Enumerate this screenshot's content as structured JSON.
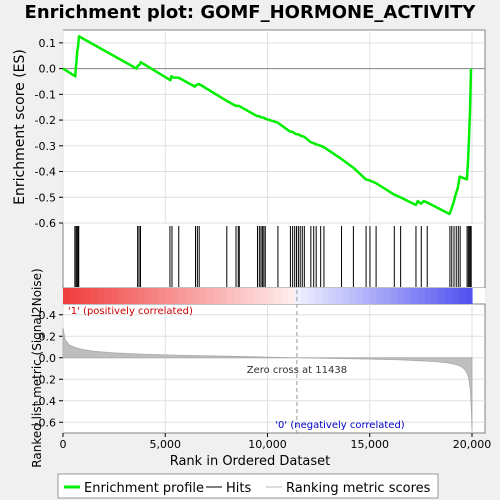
{
  "chart_data": {
    "type": "line",
    "title": "Enrichment plot: GOMF_HORMONE_ACTIVITY",
    "n_genes": 20000,
    "xlabel": "Rank in Ordered Dataset",
    "x_ticks": [
      0,
      5000,
      10000,
      15000,
      20000
    ],
    "x_tick_labels": [
      "0",
      "5,000",
      "10,000",
      "15,000",
      "20,000"
    ],
    "es_panel": {
      "ylabel": "Enrichment score (ES)",
      "ylim": [
        -0.6,
        0.15
      ],
      "y_ticks": [
        0.1,
        0.0,
        -0.1,
        -0.2,
        -0.3,
        -0.4,
        -0.5,
        -0.6
      ],
      "y_tick_labels": [
        "0.1",
        "0.0",
        "-0.1",
        "-0.2",
        "-0.3",
        "-0.4",
        "-0.5",
        "-0.6"
      ],
      "color": "#00ee00",
      "series": {
        "name": "Enrichment profile",
        "x": [
          0,
          600,
          620,
          650,
          700,
          730,
          780,
          3600,
          3650,
          3750,
          3800,
          5250,
          5300,
          5400,
          5650,
          6450,
          6500,
          6650,
          8000,
          8450,
          8600,
          9500,
          9600,
          9700,
          9800,
          9900,
          10500,
          11100,
          11200,
          11300,
          11400,
          11500,
          11600,
          11800,
          12100,
          12250,
          12400,
          12600,
          12750,
          13600,
          14200,
          14800,
          15000,
          15300,
          16200,
          16500,
          17250,
          17350,
          17500,
          17650,
          17800,
          18900,
          19000,
          19100,
          19200,
          19300,
          19400,
          19750,
          19800,
          19850,
          19900,
          19950
        ],
        "y": [
          0.0,
          -0.03,
          0.0,
          0.02,
          0.07,
          0.08,
          0.125,
          0.0,
          0.01,
          0.015,
          0.025,
          -0.045,
          -0.03,
          -0.035,
          -0.035,
          -0.07,
          -0.065,
          -0.06,
          -0.125,
          -0.145,
          -0.145,
          -0.185,
          -0.185,
          -0.19,
          -0.19,
          -0.195,
          -0.21,
          -0.245,
          -0.245,
          -0.25,
          -0.255,
          -0.255,
          -0.26,
          -0.265,
          -0.285,
          -0.29,
          -0.295,
          -0.3,
          -0.305,
          -0.35,
          -0.385,
          -0.43,
          -0.435,
          -0.445,
          -0.49,
          -0.5,
          -0.53,
          -0.515,
          -0.525,
          -0.515,
          -0.52,
          -0.565,
          -0.545,
          -0.52,
          -0.49,
          -0.465,
          -0.42,
          -0.43,
          -0.37,
          -0.28,
          -0.165,
          0.0
        ]
      }
    },
    "hits": {
      "name": "Hits",
      "x": [
        580,
        640,
        690,
        740,
        770,
        3650,
        3720,
        3790,
        5230,
        5330,
        5660,
        6480,
        6570,
        6660,
        8010,
        8460,
        8570,
        8620,
        9510,
        9600,
        9680,
        9750,
        9820,
        9890,
        10510,
        11120,
        11230,
        11330,
        11420,
        11510,
        11600,
        11700,
        11800,
        12120,
        12260,
        12380,
        12600,
        12760,
        13620,
        14200,
        14820,
        15010,
        15310,
        16200,
        16510,
        17260,
        17520,
        17810,
        18920,
        19010,
        19120,
        19230,
        19330,
        19420,
        19760,
        19820,
        19870,
        19920,
        19960
      ]
    },
    "ranked_metric": {
      "ylabel": "Ranked list metric (Signal2Noise)",
      "ylim": [
        -0.7,
        0.5
      ],
      "y_ticks": [
        0.4,
        0.2,
        0.0,
        -0.2,
        -0.4,
        -0.6
      ],
      "y_tick_labels": [
        "0.4",
        "0.2",
        "0.0",
        "-0.2",
        "-0.4",
        "-0.6"
      ],
      "color": "#bebebe",
      "series": {
        "name": "Ranking metric scores",
        "x": [
          0,
          100,
          300,
          600,
          1000,
          1500,
          2500,
          4000,
          6000,
          8000,
          10000,
          11438,
          13000,
          15000,
          16500,
          17500,
          18200,
          18700,
          19100,
          19400,
          19600,
          19750,
          19850,
          19920,
          19970,
          20000
        ],
        "y": [
          0.28,
          0.17,
          0.12,
          0.095,
          0.075,
          0.06,
          0.045,
          0.032,
          0.022,
          0.014,
          0.006,
          0.0,
          -0.006,
          -0.013,
          -0.02,
          -0.028,
          -0.036,
          -0.045,
          -0.058,
          -0.075,
          -0.1,
          -0.14,
          -0.2,
          -0.3,
          -0.5,
          -0.68
        ]
      },
      "zero_cross": 11438,
      "zero_cross_label": "Zero cross at 11438",
      "pos_label": "'1' (positively correlated)",
      "neg_label": "'0' (negatively correlated)"
    },
    "legend": {
      "placement": "bottom",
      "items": [
        {
          "label": "Enrichment profile",
          "color": "#00ee00"
        },
        {
          "label": "Hits",
          "color": "#000000"
        },
        {
          "label": "Ranking metric scores",
          "color": "#bebebe"
        }
      ]
    }
  }
}
